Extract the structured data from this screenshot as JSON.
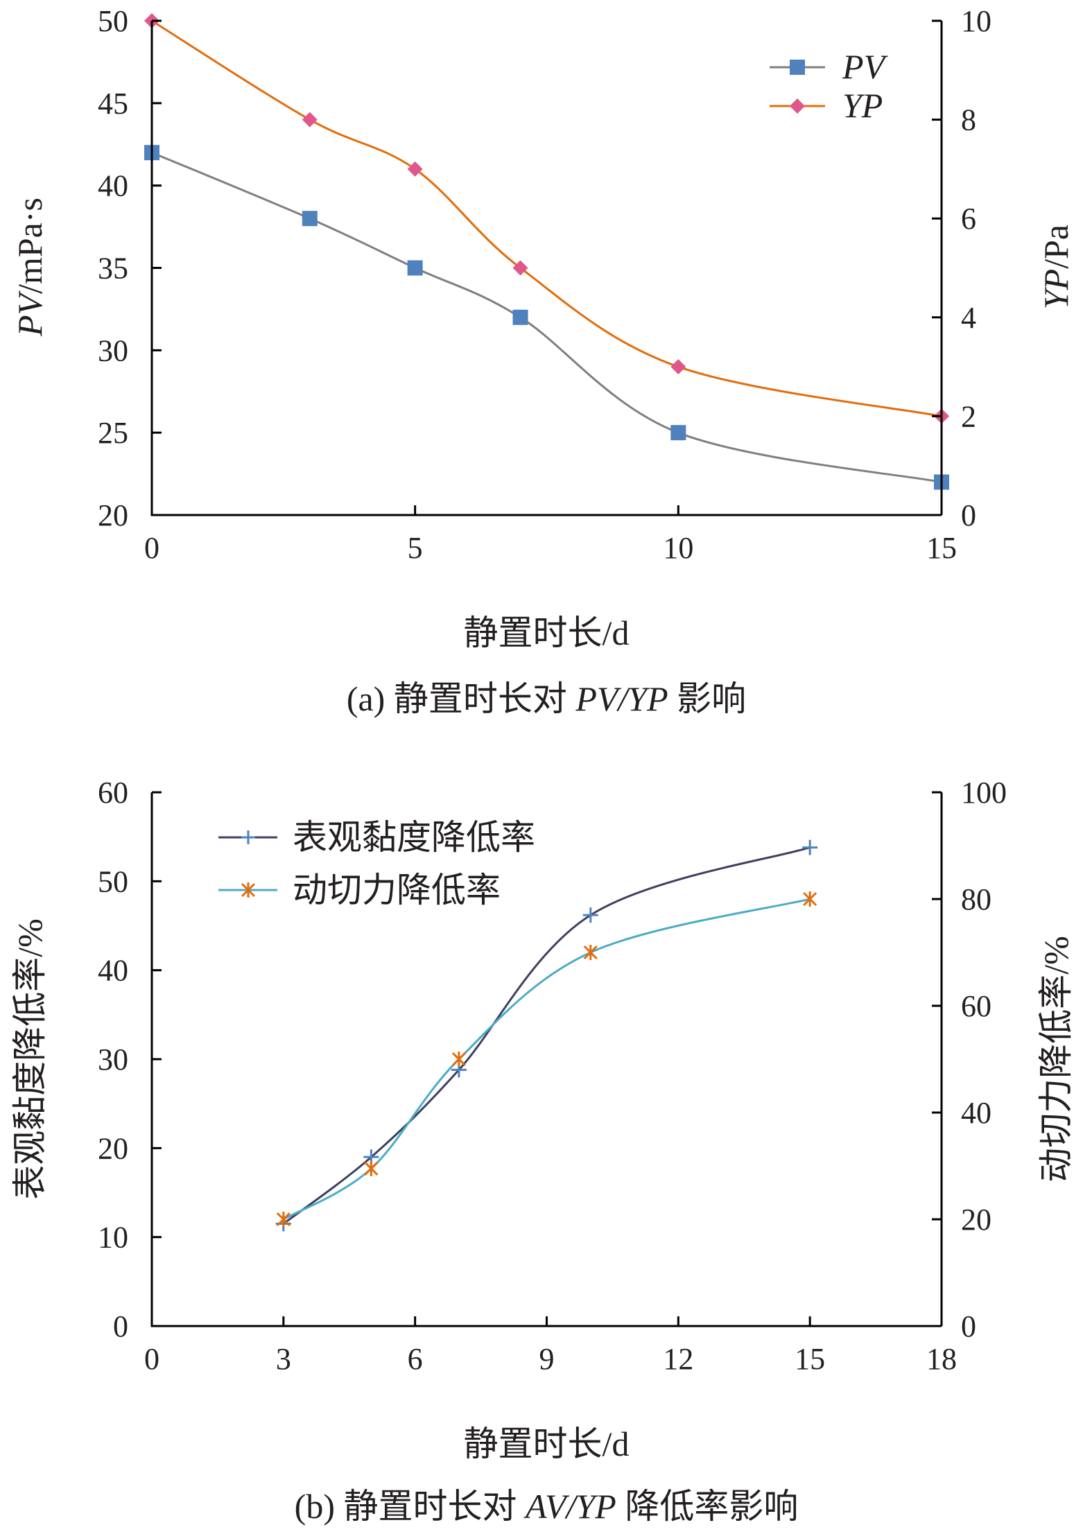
{
  "chart_data": [
    {
      "type": "line",
      "caption": {
        "prefix": "(a) 静置时长对 ",
        "italic": "PV/YP",
        "suffix": " 影响"
      },
      "xlabel": "静置时长/d",
      "ylabel": {
        "italic": "PV",
        "rest": "/mPa·s"
      },
      "y2label": {
        "italic": "YP",
        "rest": "/Pa"
      },
      "xlim": [
        0,
        15
      ],
      "xticks": [
        0,
        5,
        10,
        15
      ],
      "ylim": [
        20,
        50
      ],
      "yticks": [
        20,
        25,
        30,
        35,
        40,
        45,
        50
      ],
      "y2lim": [
        0,
        10
      ],
      "y2ticks": [
        0,
        2,
        4,
        6,
        8,
        10
      ],
      "legend_position": "top-right",
      "series": [
        {
          "name": "PV",
          "axis": "left",
          "marker": "square",
          "color": "#4f81bd",
          "line_color": "#7f7f7f",
          "x": [
            0,
            3,
            5,
            7,
            10,
            15
          ],
          "values": [
            42,
            38,
            35,
            32,
            25,
            22
          ]
        },
        {
          "name": "YP",
          "axis": "right",
          "marker": "diamond",
          "color": "#e0578a",
          "line_color": "#e36c0a",
          "x": [
            0,
            3,
            5,
            7,
            10,
            15
          ],
          "values": [
            10,
            8,
            7,
            5,
            3,
            2
          ]
        }
      ]
    },
    {
      "type": "line",
      "caption": {
        "prefix": "(b) 静置时长对 ",
        "italic": "AV/YP",
        "suffix": " 降低率影响"
      },
      "xlabel": "静置时长/d",
      "ylabel": "表观黏度降低率/%",
      "y2label": "动切力降低率/%",
      "xlim": [
        0,
        18
      ],
      "xticks": [
        0,
        3,
        6,
        9,
        12,
        15,
        18
      ],
      "ylim": [
        0,
        60
      ],
      "yticks": [
        0,
        10,
        20,
        30,
        40,
        50,
        60
      ],
      "y2lim": [
        0,
        100
      ],
      "y2ticks": [
        0,
        20,
        40,
        60,
        80,
        100
      ],
      "legend_position": "top-left",
      "series": [
        {
          "name": "表观黏度降低率",
          "axis": "left",
          "marker": "plus",
          "color": "#4f81bd",
          "line_color": "#3f3f5f",
          "x": [
            3,
            5,
            7,
            10,
            15
          ],
          "values": [
            11.5,
            19,
            28.8,
            46.2,
            53.8
          ]
        },
        {
          "name": "动切力降低率",
          "axis": "right",
          "marker": "star",
          "color": "#e36c0a",
          "line_color": "#4bacc6",
          "x": [
            3,
            5,
            7,
            10,
            15
          ],
          "values": [
            20,
            29.5,
            50,
            70,
            80
          ]
        }
      ]
    }
  ]
}
